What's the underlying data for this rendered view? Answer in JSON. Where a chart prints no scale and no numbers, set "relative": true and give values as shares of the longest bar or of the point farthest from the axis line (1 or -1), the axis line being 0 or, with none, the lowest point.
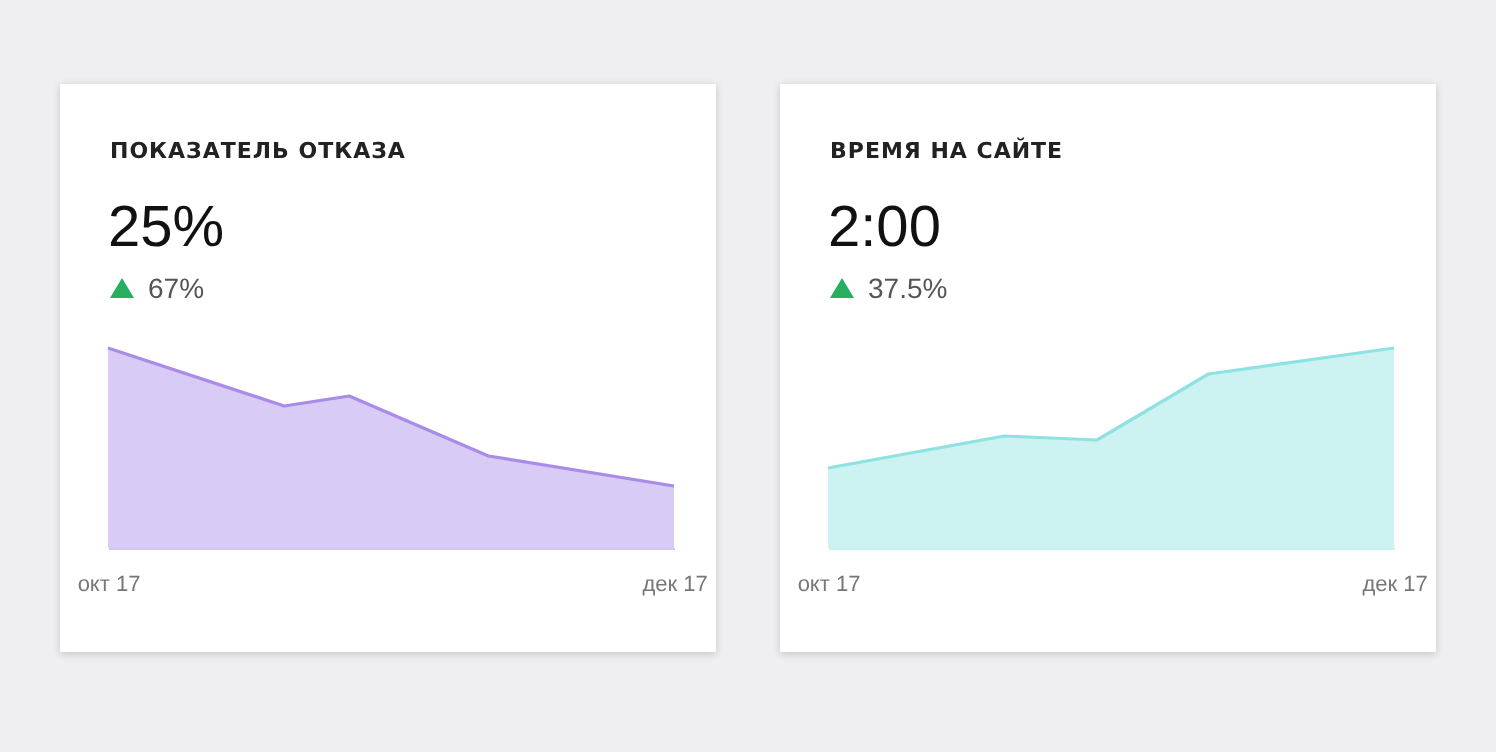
{
  "chart_data": [
    {
      "type": "area",
      "title": "ПОКАЗАТЕЛЬ ОТКАЗА",
      "subtitle": "25%",
      "annotations": [
        "67%"
      ],
      "relative": true,
      "x": [
        "2017-10-01",
        "2017-10-20",
        "2017-10-27",
        "2017-11-11",
        "2017-12-01"
      ],
      "series": [
        {
          "color": "#a98be8",
          "values": [
            1,
            0.71,
            0.76,
            0.46,
            0.31
          ]
        }
      ],
      "xlim": [
        "2017-10-01",
        "2017-12-01"
      ],
      "xticks": [
        {
          "value": "2017-10-01",
          "label": "окт 17"
        },
        {
          "value": "2017-12-01",
          "label": "дек 17"
        }
      ]
    },
    {
      "type": "area",
      "title": "ВРЕМЯ НА САЙТЕ",
      "subtitle": "2:00",
      "annotations": [
        "37.5%"
      ],
      "relative": true,
      "x": [
        "2017-10-01",
        "2017-10-20",
        "2017-10-30",
        "2017-11-11",
        "2017-12-01"
      ],
      "series": [
        {
          "color": "#8fe2e2",
          "values": [
            0.4,
            0.56,
            0.54,
            0.87,
            1
          ]
        }
      ],
      "xlim": [
        "2017-10-01",
        "2017-12-01"
      ],
      "xticks": [
        {
          "value": "2017-10-01",
          "label": "окт 17"
        },
        {
          "value": "2017-12-01",
          "label": "дек 17"
        }
      ]
    }
  ]
}
